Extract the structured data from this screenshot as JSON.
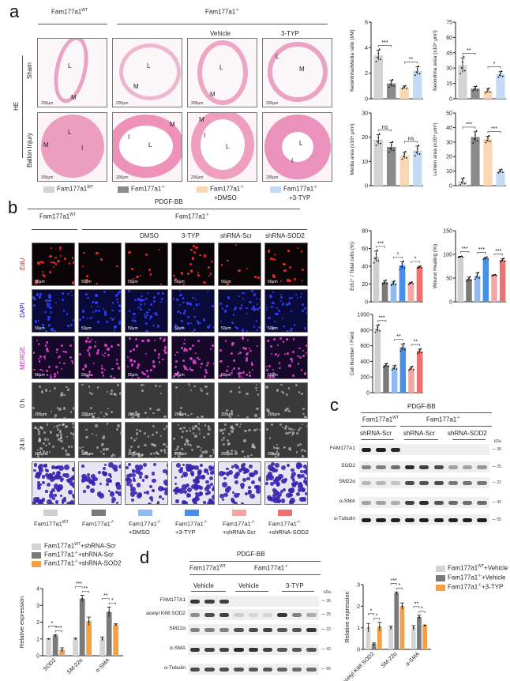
{
  "panels": {
    "a": {
      "letter": "a",
      "group_wt": "Fam177a1",
      "group_wt_sup": "WT",
      "group_ko": "Fam177a1",
      "group_ko_sup": "-/-",
      "sub_vehicle": "Vehicle",
      "sub_3typ": "3-TYP",
      "stain": "HE",
      "row_sham": "Sham",
      "row_injury": "Ballon Injury",
      "scale_bar": "200μm",
      "region_labels": {
        "lumen": "L",
        "media": "M",
        "intima": "I"
      },
      "legend": [
        {
          "label": "Fam177a1",
          "sup": "WT",
          "line2": "",
          "color": "#d4d4d4"
        },
        {
          "label": "Fam177a1",
          "sup": "-/-",
          "line2": "",
          "color": "#8a8a8a"
        },
        {
          "label": "Fam177a1",
          "sup": "-/-",
          "line2": "+DMSO",
          "color": "#fbd7b4"
        },
        {
          "label": "Fam177a1",
          "sup": "-/-",
          "line2": "+3-TYP",
          "color": "#c5daf4"
        }
      ]
    },
    "b": {
      "letter": "b",
      "treatment": "PDGF-BB",
      "group_wt": "Fam177a1",
      "group_wt_sup": "WT",
      "group_ko": "Fam177a1",
      "group_ko_sup": "-/-",
      "sub_labels": [
        "DMSO",
        "3-TYP",
        "shRNA-Scr",
        "shRNA-SOD2"
      ],
      "row_labels": [
        "EdU",
        "DAPI",
        "MERGE",
        "0 h",
        "24 h"
      ],
      "scale_fluor": "50μm",
      "scale_wound": "200μm",
      "legend": [
        {
          "label": "Fam177a1",
          "sup": "WT",
          "line2": "",
          "color": "#cfcfcf"
        },
        {
          "label": "Fam177a1",
          "sup": "-/-",
          "line2": "",
          "color": "#7a7a7a"
        },
        {
          "label": "Fam177a1",
          "sup": "-/-",
          "line2": "+DMSO",
          "color": "#8ebcf2"
        },
        {
          "label": "Fam177a1",
          "sup": "-/-",
          "line2": "+3-TYP",
          "color": "#4a8fe6"
        },
        {
          "label": "Fam177a1",
          "sup": "-/-",
          "line2": "+shRNA-Scr",
          "color": "#f6a3a3"
        },
        {
          "label": "Fam177a1",
          "sup": "-/-",
          "line2": "+shRNA-SOD2",
          "color": "#f07070"
        }
      ]
    },
    "c": {
      "letter": "c",
      "treatment": "PDGF-BB",
      "group_wt": "Fam177a1",
      "group_wt_sup": "WT",
      "group_ko": "Fam177a1",
      "group_ko_sup": "-/-",
      "sub_labels": [
        "shRNA-Scr",
        "shRNA-Scr",
        "shRNA-SOD2"
      ],
      "kda_label": "kDa",
      "rows": [
        {
          "name": "FAM177A1",
          "kda": "36"
        },
        {
          "name": "SOD2",
          "kda": "25"
        },
        {
          "name": "SM22α",
          "kda": "22"
        },
        {
          "name": "α-SMA",
          "kda": "42"
        },
        {
          "name": "α-Tubulin",
          "kda": "55"
        }
      ],
      "legend": [
        {
          "label": "Fam177a1",
          "sup": "WT",
          "suffix": "+shRNA-Scr",
          "color": "#d4d4d4"
        },
        {
          "label": "Fam177a1",
          "sup": "-/-",
          "suffix": "+shRNA-Scr",
          "color": "#7a7a7a"
        },
        {
          "label": "Fam177a1",
          "sup": "-/-",
          "suffix": "+shRNA-SOD2",
          "color": "#f5a042"
        }
      ]
    },
    "d": {
      "letter": "d",
      "treatment": "PDGF-BB",
      "group_wt": "Fam177a1",
      "group_wt_sup": "WT",
      "group_ko": "Fam177a1",
      "group_ko_sup": "-/-",
      "sub_labels": [
        "Vehicle",
        "Vehicle",
        "3-TYP"
      ],
      "kda_label": "kDa",
      "rows": [
        {
          "name": "FAM177A1",
          "kda": "36"
        },
        {
          "name": "acetyl K68 SOD2",
          "kda": "25"
        },
        {
          "name": "SM22α",
          "kda": "22"
        },
        {
          "name": "α-SMA",
          "kda": "42"
        },
        {
          "name": "α-Tubulin",
          "kda": "55"
        }
      ],
      "legend": [
        {
          "label": "Fam177a1",
          "sup": "WT",
          "suffix": "+Vehicle",
          "color": "#d4d4d4"
        },
        {
          "label": "Fam177a1",
          "sup": "-/-",
          "suffix": "+Vehicle",
          "color": "#7a7a7a"
        },
        {
          "label": "Fam177a1",
          "sup": "-/-",
          "suffix": "+3-TYP",
          "color": "#f5a042"
        }
      ]
    }
  },
  "chart_data": [
    {
      "id": "a1",
      "type": "bar",
      "title": "",
      "ylabel": "Neointima/Media ratio (I/M)",
      "ylim": [
        0,
        6
      ],
      "yticks": [
        0,
        2,
        4,
        6
      ],
      "categories": [
        "WT",
        "KO",
        "KO+DMSO",
        "KO+3-TYP"
      ],
      "values": [
        3.4,
        1.2,
        0.9,
        2.2
      ],
      "errors": [
        0.4,
        0.25,
        0.1,
        0.3
      ],
      "colors": [
        "#d4d4d4",
        "#8a8a8a",
        "#fbd7b4",
        "#c5daf4"
      ],
      "significance": [
        {
          "pair": [
            0,
            1
          ],
          "label": "***"
        },
        {
          "pair": [
            2,
            3
          ],
          "label": "**"
        }
      ]
    },
    {
      "id": "a2",
      "type": "bar",
      "ylabel": "Neointima area (x10⁴ μm²)",
      "ylim": [
        0,
        75
      ],
      "yticks": [
        0,
        15,
        30,
        45,
        60,
        75
      ],
      "categories": [
        "WT",
        "KO",
        "KO+DMSO",
        "KO+3-TYP"
      ],
      "values": [
        33,
        10,
        8,
        24
      ],
      "errors": [
        7,
        2,
        2,
        2.5
      ],
      "colors": [
        "#d4d4d4",
        "#8a8a8a",
        "#fbd7b4",
        "#c5daf4"
      ],
      "significance": [
        {
          "pair": [
            0,
            1
          ],
          "label": "**"
        },
        {
          "pair": [
            2,
            3
          ],
          "label": "*"
        }
      ]
    },
    {
      "id": "a3",
      "type": "bar",
      "ylabel": "Media area (x10⁴ μm²)",
      "ylim": [
        0,
        30
      ],
      "yticks": [
        0,
        10,
        20,
        30
      ],
      "categories": [
        "WT",
        "KO",
        "KO+DMSO",
        "KO+3-TYP"
      ],
      "values": [
        19,
        16,
        12.5,
        14.5
      ],
      "errors": [
        2,
        1.8,
        1.3,
        1.8
      ],
      "colors": [
        "#d4d4d4",
        "#8a8a8a",
        "#fbd7b4",
        "#c5daf4"
      ],
      "significance": [
        {
          "pair": [
            0,
            1
          ],
          "label": "ns"
        },
        {
          "pair": [
            2,
            3
          ],
          "label": "ns"
        }
      ]
    },
    {
      "id": "a4",
      "type": "bar",
      "ylabel": "Lumen area (x10⁴ μm²)",
      "ylim": [
        0,
        50
      ],
      "yticks": [
        0,
        10,
        20,
        30,
        40,
        50
      ],
      "categories": [
        "WT",
        "KO",
        "KO+DMSO",
        "KO+3-TYP"
      ],
      "values": [
        3,
        33.5,
        32,
        10
      ],
      "errors": [
        2,
        3.5,
        2,
        1
      ],
      "colors": [
        "#d4d4d4",
        "#8a8a8a",
        "#fbd7b4",
        "#c5daf4"
      ],
      "significance": [
        {
          "pair": [
            0,
            1
          ],
          "label": "***"
        },
        {
          "pair": [
            2,
            3
          ],
          "label": "***"
        }
      ]
    },
    {
      "id": "b1",
      "type": "bar",
      "ylabel": "EdU⁺ / Total cells (%)",
      "ylim": [
        0,
        80
      ],
      "yticks": [
        0,
        20,
        40,
        60,
        80
      ],
      "categories": [
        "WT",
        "KO",
        "KO+DMSO",
        "KO+3-TYP",
        "KO+shRNA-Scr",
        "KO+shRNA-SOD2"
      ],
      "values": [
        51,
        22,
        21,
        41,
        21,
        39
      ],
      "errors": [
        6,
        2,
        2,
        4,
        1,
        1
      ],
      "colors": [
        "#cfcfcf",
        "#7a7a7a",
        "#8ebcf2",
        "#4a8fe6",
        "#f6a3a3",
        "#f07070"
      ],
      "significance": [
        {
          "pair": [
            0,
            1
          ],
          "label": "***"
        },
        {
          "pair": [
            2,
            3
          ],
          "label": "*"
        },
        {
          "pair": [
            4,
            5
          ],
          "label": "*"
        }
      ]
    },
    {
      "id": "b2",
      "type": "bar",
      "ylabel": "Wound Healing (%)",
      "ylim": [
        0,
        150
      ],
      "yticks": [
        0,
        50,
        100,
        150
      ],
      "categories": [
        "WT",
        "KO",
        "KO+DMSO",
        "KO+3-TYP",
        "KO+shRNA-Scr",
        "KO+shRNA-SOD2"
      ],
      "values": [
        95,
        48,
        55,
        92,
        56,
        88
      ],
      "errors": [
        1,
        4,
        6,
        2,
        1,
        3
      ],
      "colors": [
        "#cfcfcf",
        "#7a7a7a",
        "#8ebcf2",
        "#4a8fe6",
        "#f6a3a3",
        "#f07070"
      ],
      "significance": [
        {
          "pair": [
            0,
            1
          ],
          "label": "***"
        },
        {
          "pair": [
            2,
            3
          ],
          "label": "***"
        },
        {
          "pair": [
            4,
            5
          ],
          "label": "***"
        }
      ]
    },
    {
      "id": "b3",
      "type": "bar",
      "ylabel": "Cell Number / Field",
      "ylim": [
        0,
        1000
      ],
      "yticks": [
        0,
        200,
        400,
        600,
        800,
        1000
      ],
      "categories": [
        "WT",
        "KO",
        "KO+DMSO",
        "KO+3-TYP",
        "KO+shRNA-Scr",
        "KO+shRNA-SOD2"
      ],
      "values": [
        820,
        350,
        320,
        580,
        310,
        530
      ],
      "errors": [
        40,
        20,
        25,
        40,
        20,
        25
      ],
      "colors": [
        "#cfcfcf",
        "#7a7a7a",
        "#8ebcf2",
        "#4a8fe6",
        "#f6a3a3",
        "#f07070"
      ],
      "significance": [
        {
          "pair": [
            0,
            1
          ],
          "label": "***"
        },
        {
          "pair": [
            2,
            3
          ],
          "label": "**"
        },
        {
          "pair": [
            4,
            5
          ],
          "label": "**"
        }
      ]
    },
    {
      "id": "c1",
      "type": "bar",
      "ylabel": "Relative expression",
      "ylim": [
        0,
        4
      ],
      "yticks": [
        0,
        1,
        2,
        3,
        4
      ],
      "categories": [
        "SOD2",
        "SM-22α",
        "α-SMA"
      ],
      "series": [
        {
          "name": "Fam177a1WT+shRNA-Scr",
          "values": [
            1.0,
            1.0,
            1.0
          ],
          "errors": [
            0.02,
            0.05,
            0.12
          ],
          "color": "#d4d4d4"
        },
        {
          "name": "Fam177a1-/-+shRNA-Scr",
          "values": [
            1.2,
            3.4,
            2.6
          ],
          "errors": [
            0.05,
            0.2,
            0.3
          ],
          "color": "#7a7a7a"
        },
        {
          "name": "Fam177a1-/-+shRNA-SOD2",
          "values": [
            0.35,
            2.05,
            1.85
          ],
          "errors": [
            0.12,
            0.25,
            0.05
          ],
          "color": "#f5a042"
        }
      ],
      "significance": [
        {
          "group": 0,
          "pairs": [
            [
              "0",
              "1",
              "*"
            ],
            [
              "1",
              "2",
              "***"
            ]
          ]
        },
        {
          "group": 1,
          "pairs": [
            [
              "0",
              "1",
              "***"
            ],
            [
              "1",
              "2",
              "**"
            ]
          ]
        },
        {
          "group": 2,
          "pairs": [
            [
              "0",
              "1",
              "**"
            ],
            [
              "1",
              "2",
              "*"
            ]
          ]
        }
      ]
    },
    {
      "id": "d1",
      "type": "bar",
      "ylabel": "Relative expression",
      "ylim": [
        0,
        3
      ],
      "yticks": [
        0,
        1,
        2,
        3
      ],
      "categories": [
        "acetyl K68 SOD2",
        "SM-22α",
        "α-SMA"
      ],
      "series": [
        {
          "name": "Fam177a1WT+Vehicle",
          "values": [
            1.0,
            1.0,
            1.0
          ],
          "errors": [
            0.2,
            0.08,
            0.1
          ],
          "color": "#d4d4d4"
        },
        {
          "name": "Fam177a1-/-+Vehicle",
          "values": [
            0.25,
            2.6,
            1.5
          ],
          "errors": [
            0.05,
            0.06,
            0.08
          ],
          "color": "#7a7a7a"
        },
        {
          "name": "Fam177a1-/-+3-TYP",
          "values": [
            1.05,
            2.0,
            1.1
          ],
          "errors": [
            0.2,
            0.15,
            0.03
          ],
          "color": "#f5a042"
        }
      ],
      "significance": [
        {
          "group": 0,
          "pairs": [
            [
              "0",
              "1",
              "*"
            ],
            [
              "1",
              "2",
              "*"
            ]
          ]
        },
        {
          "group": 1,
          "pairs": [
            [
              "0",
              "1",
              "***"
            ],
            [
              "1",
              "2",
              "*"
            ]
          ]
        },
        {
          "group": 2,
          "pairs": [
            [
              "0",
              "1",
              "**"
            ],
            [
              "1",
              "2",
              "*"
            ]
          ]
        }
      ]
    }
  ]
}
